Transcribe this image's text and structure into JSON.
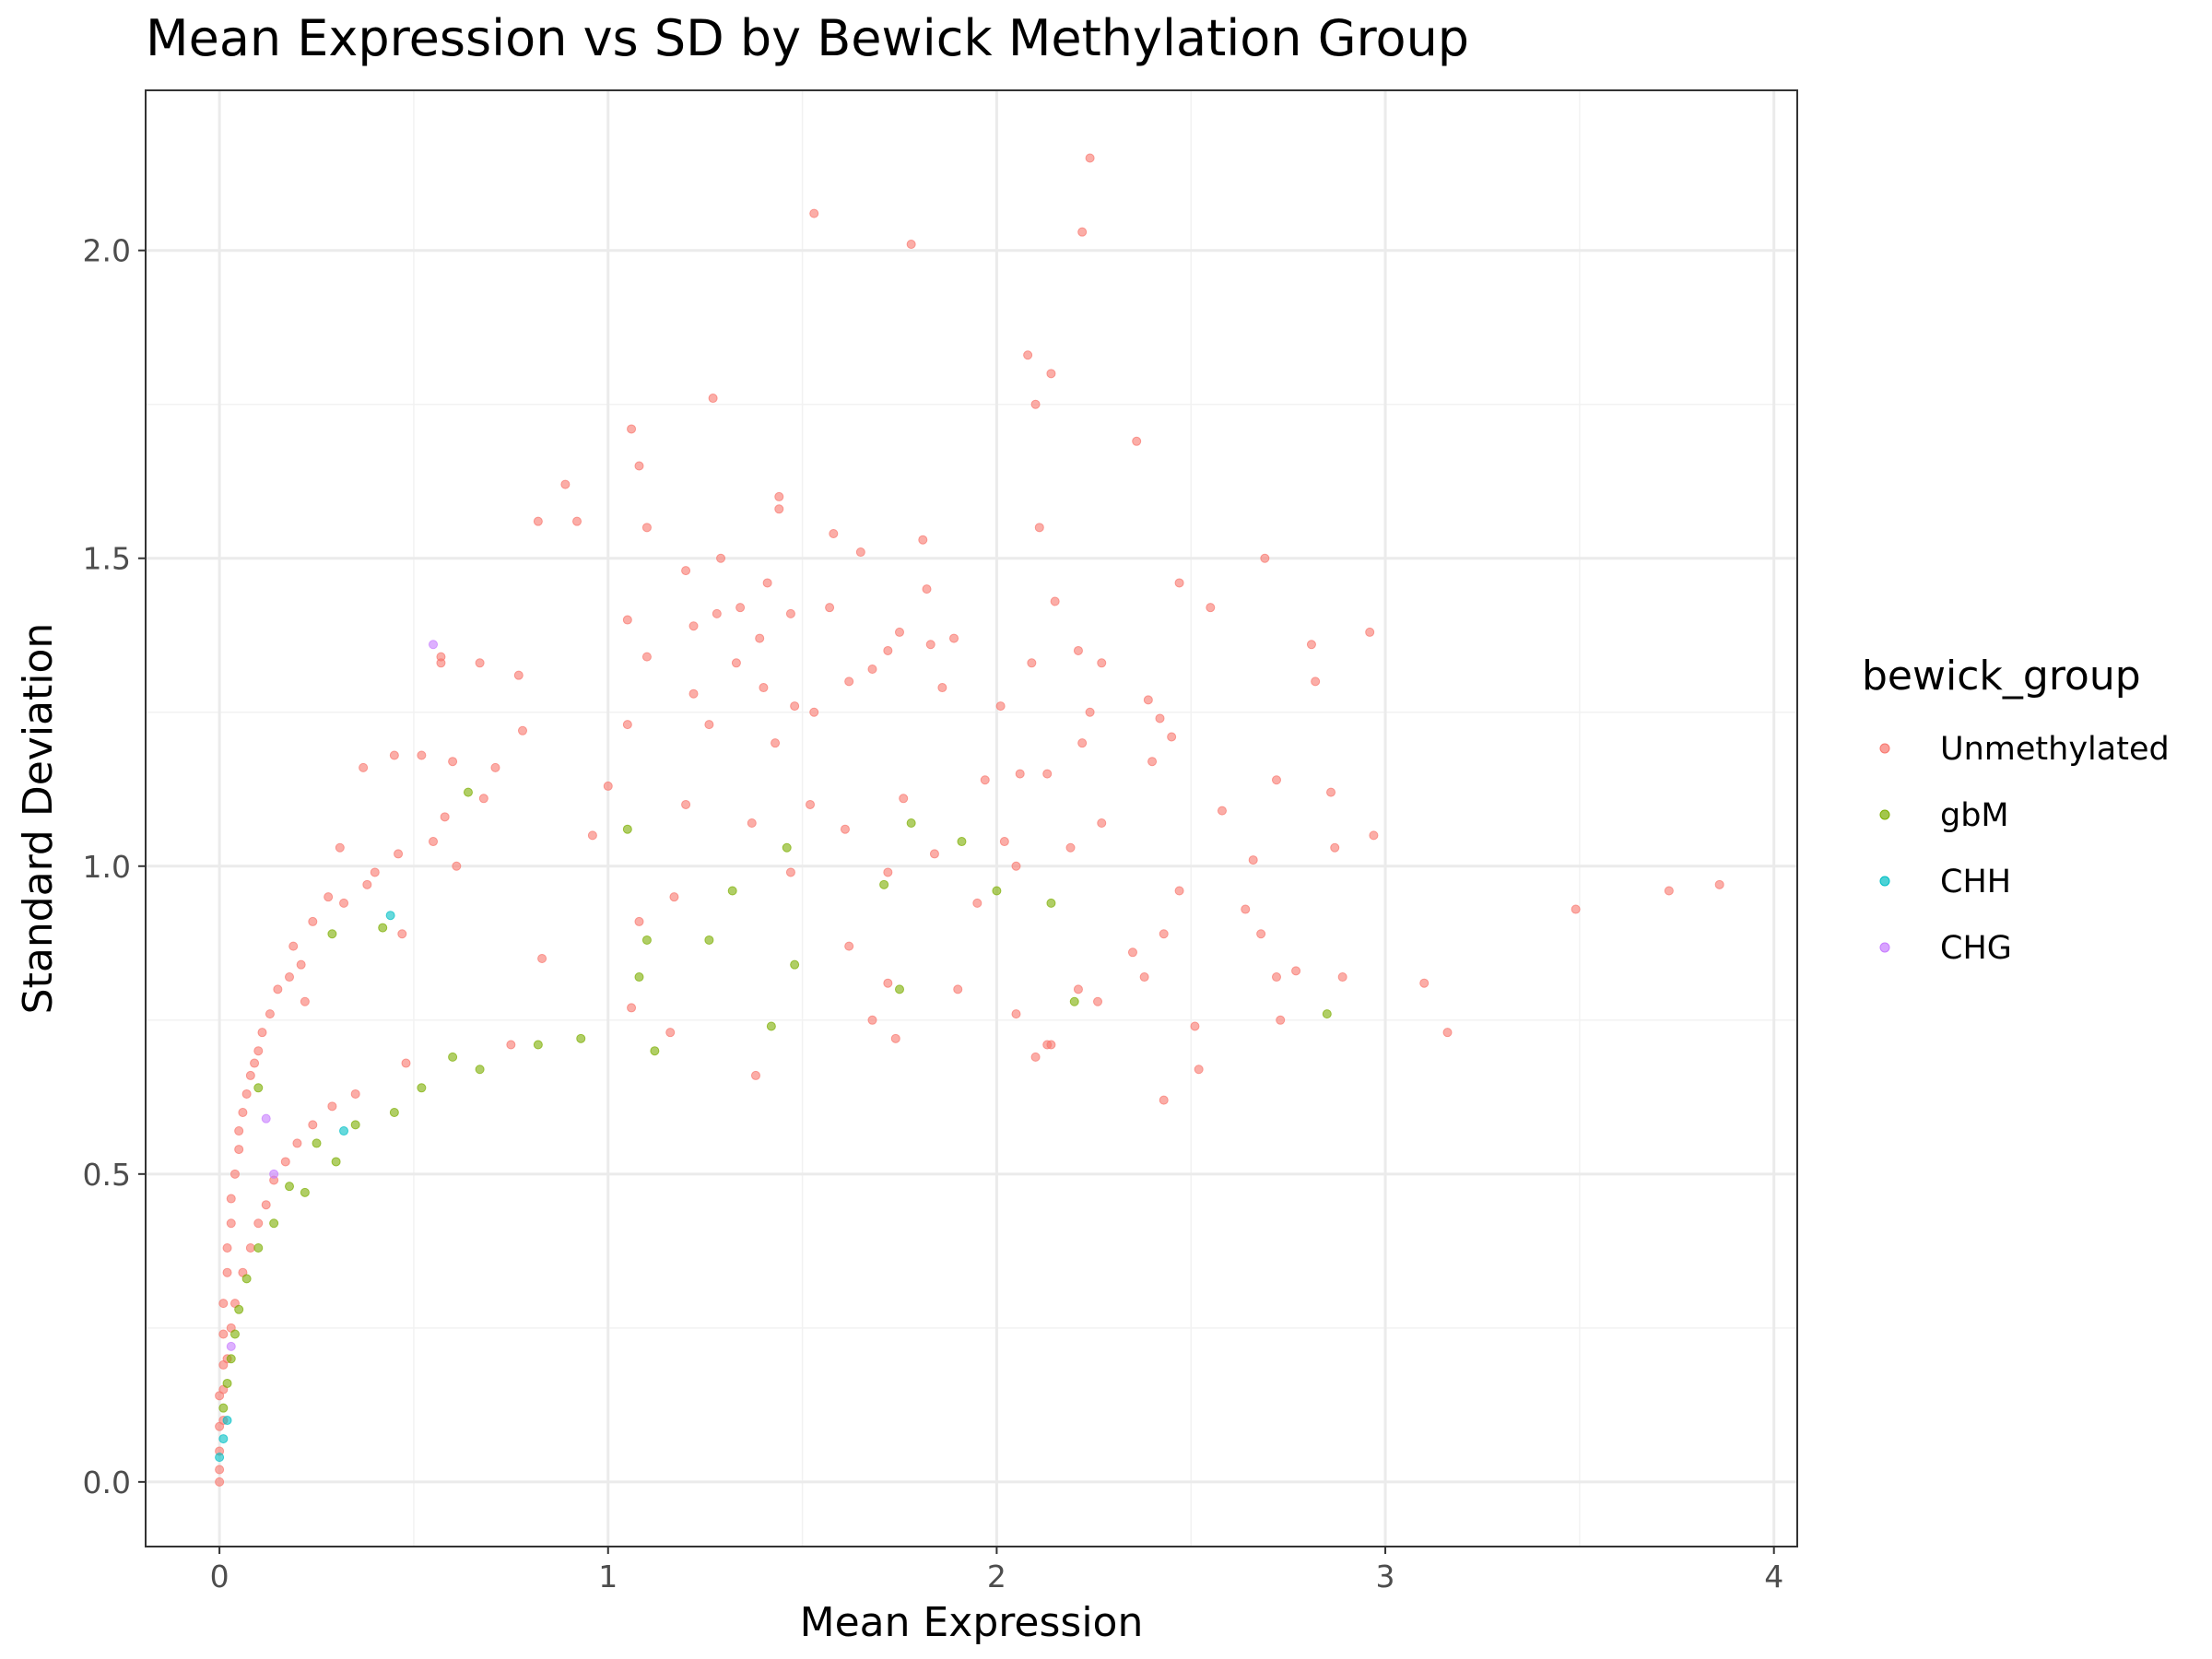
{
  "chart_data": {
    "type": "scatter",
    "title": "Mean Expression vs SD by Bewick Methylation Group",
    "xlabel": "Mean Expression",
    "ylabel": "Standard Deviation",
    "xlim": [
      -0.19,
      4.06
    ],
    "ylim": [
      -0.105,
      2.26
    ],
    "x_ticks": [
      0,
      1,
      2,
      3,
      4
    ],
    "x_tick_labels": [
      "0",
      "1",
      "2",
      "3",
      "4"
    ],
    "y_ticks": [
      0.0,
      0.5,
      1.0,
      1.5,
      2.0
    ],
    "y_tick_labels": [
      "0.0",
      "0.5",
      "1.0",
      "1.5",
      "2.0"
    ],
    "grid": true,
    "legend": {
      "title": "bewick_group",
      "placement": "right",
      "entries": [
        {
          "name": "Unmethylated",
          "color": "#F8766D"
        },
        {
          "name": "gbM",
          "color": "#7CAE00"
        },
        {
          "name": "CHH",
          "color": "#00BFC4"
        },
        {
          "name": "CHG",
          "color": "#C77CFF"
        }
      ]
    },
    "series": [
      {
        "name": "Unmethylated",
        "color": "#F8766D",
        "points": [
          [
            2.24,
            2.15
          ],
          [
            1.53,
            2.06
          ],
          [
            2.22,
            2.03
          ],
          [
            1.78,
            2.01
          ],
          [
            2.08,
            1.83
          ],
          [
            2.14,
            1.8
          ],
          [
            1.27,
            1.76
          ],
          [
            2.1,
            1.75
          ],
          [
            1.06,
            1.71
          ],
          [
            2.36,
            1.69
          ],
          [
            1.08,
            1.65
          ],
          [
            0.89,
            1.62
          ],
          [
            1.44,
            1.6
          ],
          [
            1.44,
            1.58
          ],
          [
            0.82,
            1.56
          ],
          [
            0.92,
            1.56
          ],
          [
            1.1,
            1.55
          ],
          [
            2.11,
            1.55
          ],
          [
            1.58,
            1.54
          ],
          [
            1.81,
            1.53
          ],
          [
            1.65,
            1.51
          ],
          [
            2.69,
            1.5
          ],
          [
            1.29,
            1.5
          ],
          [
            1.2,
            1.48
          ],
          [
            1.41,
            1.46
          ],
          [
            2.47,
            1.46
          ],
          [
            1.82,
            1.45
          ],
          [
            2.15,
            1.43
          ],
          [
            1.34,
            1.42
          ],
          [
            2.55,
            1.42
          ],
          [
            1.57,
            1.42
          ],
          [
            1.47,
            1.41
          ],
          [
            1.28,
            1.41
          ],
          [
            1.05,
            1.4
          ],
          [
            1.22,
            1.39
          ],
          [
            1.75,
            1.38
          ],
          [
            2.96,
            1.38
          ],
          [
            1.39,
            1.37
          ],
          [
            1.89,
            1.37
          ],
          [
            1.83,
            1.36
          ],
          [
            2.81,
            1.36
          ],
          [
            2.21,
            1.35
          ],
          [
            1.72,
            1.35
          ],
          [
            0.57,
            1.34
          ],
          [
            1.1,
            1.34
          ],
          [
            1.33,
            1.33
          ],
          [
            0.57,
            1.33
          ],
          [
            0.67,
            1.33
          ],
          [
            2.09,
            1.33
          ],
          [
            2.27,
            1.33
          ],
          [
            1.68,
            1.32
          ],
          [
            1.62,
            1.3
          ],
          [
            0.77,
            1.31
          ],
          [
            2.82,
            1.3
          ],
          [
            1.86,
            1.29
          ],
          [
            1.4,
            1.29
          ],
          [
            1.22,
            1.28
          ],
          [
            2.39,
            1.27
          ],
          [
            2.01,
            1.26
          ],
          [
            1.48,
            1.26
          ],
          [
            2.24,
            1.25
          ],
          [
            1.53,
            1.25
          ],
          [
            2.42,
            1.24
          ],
          [
            1.26,
            1.23
          ],
          [
            1.05,
            1.23
          ],
          [
            0.78,
            1.22
          ],
          [
            1.43,
            1.2
          ],
          [
            2.45,
            1.21
          ],
          [
            2.22,
            1.2
          ],
          [
            0.45,
            1.18
          ],
          [
            0.52,
            1.18
          ],
          [
            0.6,
            1.17
          ],
          [
            2.4,
            1.17
          ],
          [
            0.37,
            1.16
          ],
          [
            0.71,
            1.16
          ],
          [
            2.06,
            1.15
          ],
          [
            2.13,
            1.15
          ],
          [
            2.72,
            1.14
          ],
          [
            1.97,
            1.14
          ],
          [
            1.0,
            1.13
          ],
          [
            2.86,
            1.12
          ],
          [
            0.68,
            1.11
          ],
          [
            1.2,
            1.1
          ],
          [
            1.76,
            1.11
          ],
          [
            1.52,
            1.1
          ],
          [
            0.58,
            1.08
          ],
          [
            2.58,
            1.09
          ],
          [
            1.37,
            1.07
          ],
          [
            2.27,
            1.07
          ],
          [
            1.61,
            1.06
          ],
          [
            0.96,
            1.05
          ],
          [
            2.97,
            1.05
          ],
          [
            0.55,
            1.04
          ],
          [
            2.02,
            1.04
          ],
          [
            2.19,
            1.03
          ],
          [
            0.31,
            1.03
          ],
          [
            2.87,
            1.03
          ],
          [
            0.46,
            1.02
          ],
          [
            1.84,
            1.02
          ],
          [
            2.66,
            1.01
          ],
          [
            0.61,
            1.0
          ],
          [
            2.05,
            1.0
          ],
          [
            0.4,
            0.99
          ],
          [
            1.47,
            0.99
          ],
          [
            1.72,
            0.99
          ],
          [
            0.38,
            0.97
          ],
          [
            2.47,
            0.96
          ],
          [
            0.28,
            0.95
          ],
          [
            1.17,
            0.95
          ],
          [
            3.73,
            0.96
          ],
          [
            3.86,
            0.97
          ],
          [
            3.49,
            0.93
          ],
          [
            0.32,
            0.94
          ],
          [
            1.95,
            0.94
          ],
          [
            2.64,
            0.93
          ],
          [
            0.24,
            0.91
          ],
          [
            1.08,
            0.91
          ],
          [
            2.43,
            0.89
          ],
          [
            2.68,
            0.89
          ],
          [
            0.47,
            0.89
          ],
          [
            0.19,
            0.87
          ],
          [
            1.62,
            0.87
          ],
          [
            2.35,
            0.86
          ],
          [
            0.21,
            0.84
          ],
          [
            0.83,
            0.85
          ],
          [
            2.77,
            0.83
          ],
          [
            2.72,
            0.82
          ],
          [
            0.18,
            0.82
          ],
          [
            2.38,
            0.82
          ],
          [
            2.89,
            0.82
          ],
          [
            1.72,
            0.81
          ],
          [
            3.1,
            0.81
          ],
          [
            0.15,
            0.8
          ],
          [
            1.9,
            0.8
          ],
          [
            2.21,
            0.8
          ],
          [
            0.22,
            0.78
          ],
          [
            2.26,
            0.78
          ],
          [
            0.13,
            0.76
          ],
          [
            1.06,
            0.77
          ],
          [
            2.05,
            0.76
          ],
          [
            1.68,
            0.75
          ],
          [
            2.73,
            0.75
          ],
          [
            2.51,
            0.74
          ],
          [
            0.11,
            0.73
          ],
          [
            1.16,
            0.73
          ],
          [
            3.16,
            0.73
          ],
          [
            1.74,
            0.72
          ],
          [
            2.14,
            0.71
          ],
          [
            0.75,
            0.71
          ],
          [
            0.1,
            0.7
          ],
          [
            2.13,
            0.71
          ],
          [
            2.1,
            0.69
          ],
          [
            0.09,
            0.68
          ],
          [
            0.48,
            0.68
          ],
          [
            2.52,
            0.67
          ],
          [
            0.08,
            0.66
          ],
          [
            1.38,
            0.66
          ],
          [
            0.07,
            0.63
          ],
          [
            2.43,
            0.62
          ],
          [
            0.35,
            0.63
          ],
          [
            0.06,
            0.6
          ],
          [
            0.29,
            0.61
          ],
          [
            0.05,
            0.57
          ],
          [
            0.24,
            0.58
          ],
          [
            0.05,
            0.54
          ],
          [
            0.2,
            0.55
          ],
          [
            0.04,
            0.5
          ],
          [
            0.17,
            0.52
          ],
          [
            0.03,
            0.46
          ],
          [
            0.14,
            0.49
          ],
          [
            0.03,
            0.42
          ],
          [
            0.12,
            0.45
          ],
          [
            0.02,
            0.38
          ],
          [
            0.1,
            0.42
          ],
          [
            0.02,
            0.34
          ],
          [
            0.08,
            0.38
          ],
          [
            0.01,
            0.29
          ],
          [
            0.06,
            0.34
          ],
          [
            0.01,
            0.24
          ],
          [
            0.04,
            0.29
          ],
          [
            0.01,
            0.19
          ],
          [
            0.03,
            0.25
          ],
          [
            0.0,
            0.14
          ],
          [
            0.02,
            0.2
          ],
          [
            0.0,
            0.09
          ],
          [
            0.01,
            0.15
          ],
          [
            0.0,
            0.05
          ],
          [
            0.0,
            0.02
          ],
          [
            0.0,
            0.0
          ],
          [
            0.01,
            0.1
          ]
        ]
      },
      {
        "name": "gbM",
        "color": "#7CAE00",
        "points": [
          [
            0.64,
            1.12
          ],
          [
            1.78,
            1.07
          ],
          [
            1.91,
            1.04
          ],
          [
            1.46,
            1.03
          ],
          [
            1.05,
            1.06
          ],
          [
            2.0,
            0.96
          ],
          [
            1.32,
            0.96
          ],
          [
            2.14,
            0.94
          ],
          [
            0.29,
            0.89
          ],
          [
            1.71,
            0.97
          ],
          [
            0.42,
            0.9
          ],
          [
            1.1,
            0.88
          ],
          [
            1.26,
            0.88
          ],
          [
            2.85,
            0.76
          ],
          [
            2.2,
            0.78
          ],
          [
            0.1,
            0.64
          ],
          [
            1.75,
            0.8
          ],
          [
            1.08,
            0.82
          ],
          [
            1.48,
            0.84
          ],
          [
            0.93,
            0.72
          ],
          [
            1.42,
            0.74
          ],
          [
            0.67,
            0.67
          ],
          [
            1.12,
            0.7
          ],
          [
            0.35,
            0.58
          ],
          [
            0.25,
            0.55
          ],
          [
            0.18,
            0.48
          ],
          [
            0.14,
            0.42
          ],
          [
            0.1,
            0.38
          ],
          [
            0.07,
            0.33
          ],
          [
            0.05,
            0.28
          ],
          [
            0.04,
            0.24
          ],
          [
            0.03,
            0.2
          ],
          [
            0.02,
            0.16
          ],
          [
            0.01,
            0.12
          ],
          [
            0.52,
            0.64
          ],
          [
            0.82,
            0.71
          ],
          [
            0.6,
            0.69
          ],
          [
            0.45,
            0.6
          ],
          [
            0.3,
            0.52
          ],
          [
            0.22,
            0.47
          ]
        ]
      },
      {
        "name": "CHH",
        "color": "#00BFC4",
        "points": [
          [
            0.44,
            0.92
          ],
          [
            0.32,
            0.57
          ],
          [
            0.0,
            0.04
          ],
          [
            0.01,
            0.07
          ],
          [
            0.02,
            0.1
          ]
        ]
      },
      {
        "name": "CHG",
        "color": "#C77CFF",
        "points": [
          [
            0.55,
            1.36
          ],
          [
            0.12,
            0.59
          ],
          [
            0.14,
            0.5
          ],
          [
            0.03,
            0.22
          ]
        ]
      }
    ]
  }
}
